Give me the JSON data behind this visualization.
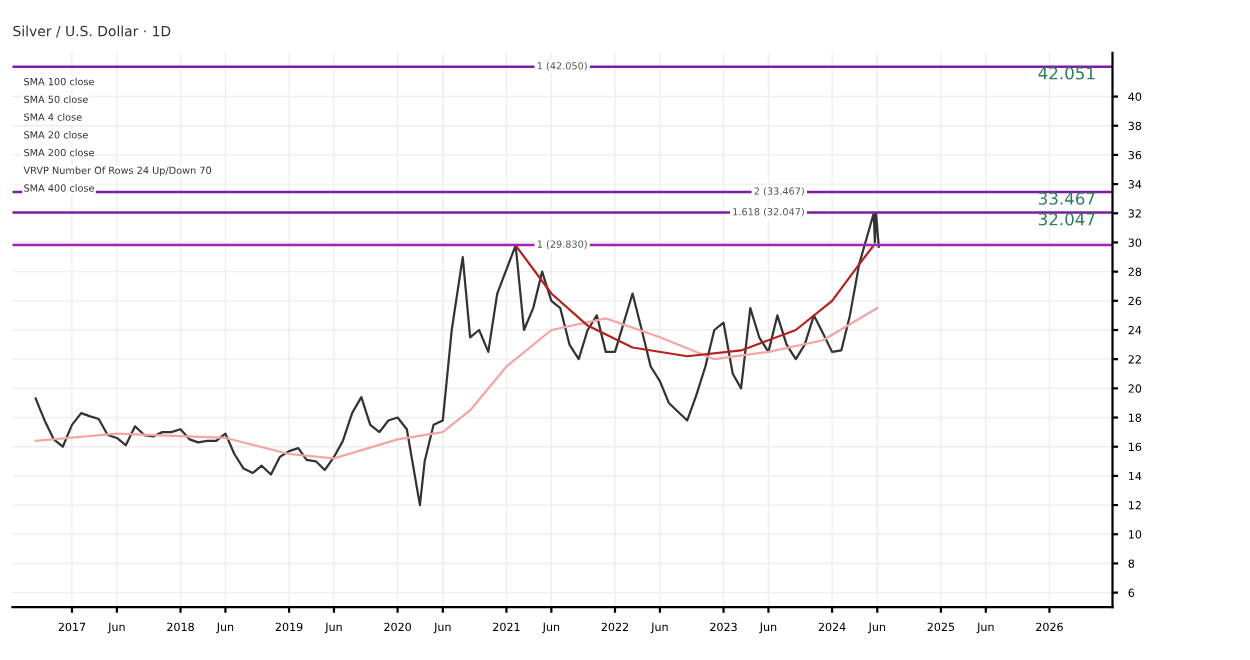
{
  "chart_data": {
    "type": "line",
    "title": "Silver / U.S. Dollar · 1D",
    "annotations": [
      "SMA 100 close",
      "SMA 50 close",
      "SMA 4 close",
      "SMA 20 close",
      "SMA 200 close",
      "VRVP Number Of Rows 24 Up/Down 70",
      "SMA 400 close",
      {
        "text": "1 (42.050)",
        "x": "2021-10-01",
        "y": 42.05
      },
      {
        "text": "1 (29.830)",
        "x": "2021-10-01",
        "y": 29.83
      },
      {
        "text": "2 (33.467)",
        "x": "2023-10-01",
        "y": 33.467
      },
      {
        "text": "1.618 (32.047)",
        "x": "2023-10-01",
        "y": 32.047
      }
    ],
    "xlim": [
      "2016-06-15",
      "2026-08-01"
    ],
    "xticks": [
      {
        "value": "2017-01-01",
        "label": "2017"
      },
      {
        "value": "2017-06-01",
        "label": "Jun"
      },
      {
        "value": "2018-01-01",
        "label": "2018"
      },
      {
        "value": "2018-06-01",
        "label": "Jun"
      },
      {
        "value": "2019-01-01",
        "label": "2019"
      },
      {
        "value": "2019-06-01",
        "label": "Jun"
      },
      {
        "value": "2020-01-01",
        "label": "2020"
      },
      {
        "value": "2020-06-01",
        "label": "Jun"
      },
      {
        "value": "2021-01-01",
        "label": "2021"
      },
      {
        "value": "2021-06-01",
        "label": "Jun"
      },
      {
        "value": "2022-01-01",
        "label": "2022"
      },
      {
        "value": "2022-06-01",
        "label": "Jun"
      },
      {
        "value": "2023-01-01",
        "label": "2023"
      },
      {
        "value": "2023-06-01",
        "label": "Jun"
      },
      {
        "value": "2024-01-01",
        "label": "2024"
      },
      {
        "value": "2024-06-01",
        "label": "Jun"
      },
      {
        "value": "2025-01-01",
        "label": "2025"
      },
      {
        "value": "2025-06-01",
        "label": "Jun"
      },
      {
        "value": "2026-01-01",
        "label": "2026"
      }
    ],
    "ylim": [
      5,
      43
    ],
    "yticks": [
      6,
      8,
      10,
      12,
      14,
      16,
      18,
      20,
      22,
      24,
      26,
      28,
      30,
      32,
      34,
      36,
      38,
      40
    ],
    "grid": true,
    "series": [
      {
        "color": "#333333",
        "x": [
          "2016-09-01",
          "2016-10-01",
          "2016-11-01",
          "2016-12-01",
          "2017-01-01",
          "2017-02-01",
          "2017-03-01",
          "2017-04-01",
          "2017-05-01",
          "2017-06-01",
          "2017-07-01",
          "2017-08-01",
          "2017-09-01",
          "2017-10-01",
          "2017-11-01",
          "2017-12-01",
          "2018-01-01",
          "2018-02-01",
          "2018-03-01",
          "2018-04-01",
          "2018-05-01",
          "2018-06-01",
          "2018-07-01",
          "2018-08-01",
          "2018-09-01",
          "2018-10-01",
          "2018-11-01",
          "2018-12-01",
          "2019-01-01",
          "2019-02-01",
          "2019-03-01",
          "2019-04-01",
          "2019-05-01",
          "2019-06-01",
          "2019-07-01",
          "2019-08-01",
          "2019-09-01",
          "2019-10-01",
          "2019-11-01",
          "2019-12-01",
          "2020-01-01",
          "2020-02-01",
          "2020-03-16",
          "2020-04-01",
          "2020-05-01",
          "2020-06-01",
          "2020-07-01",
          "2020-08-07",
          "2020-09-01",
          "2020-10-01",
          "2020-11-01",
          "2020-12-01",
          "2021-02-01",
          "2021-03-01",
          "2021-04-01",
          "2021-05-01",
          "2021-06-01",
          "2021-07-01",
          "2021-08-01",
          "2021-09-01",
          "2021-10-01",
          "2021-11-01",
          "2021-12-01",
          "2022-01-01",
          "2022-03-01",
          "2022-04-01",
          "2022-05-01",
          "2022-06-01",
          "2022-07-01",
          "2022-09-01",
          "2022-10-01",
          "2022-11-01",
          "2022-12-01",
          "2023-01-01",
          "2023-02-01",
          "2023-03-01",
          "2023-04-01",
          "2023-05-01",
          "2023-06-01",
          "2023-07-01",
          "2023-08-01",
          "2023-09-01",
          "2023-10-01",
          "2023-11-01",
          "2023-12-01",
          "2024-01-01",
          "2024-02-01",
          "2024-03-01",
          "2024-04-01",
          "2024-05-20",
          "2024-05-24",
          "2024-05-28",
          "2024-06-06"
        ],
        "values": [
          19.3,
          17.8,
          16.5,
          16.0,
          17.5,
          18.3,
          18.1,
          17.9,
          16.8,
          16.6,
          16.1,
          17.4,
          16.8,
          16.7,
          17.0,
          17.0,
          17.2,
          16.5,
          16.3,
          16.4,
          16.4,
          16.9,
          15.5,
          14.5,
          14.2,
          14.7,
          14.1,
          15.3,
          15.7,
          15.9,
          15.1,
          15.0,
          14.4,
          15.3,
          16.4,
          18.3,
          19.4,
          17.5,
          17.0,
          17.8,
          18.0,
          17.2,
          12.0,
          15.0,
          17.5,
          17.8,
          24.0,
          29.0,
          23.5,
          24.0,
          22.5,
          26.5,
          29.8,
          24.0,
          25.5,
          28.0,
          26.0,
          25.5,
          23.0,
          22.0,
          24.0,
          25.0,
          22.5,
          22.5,
          26.5,
          24.0,
          21.5,
          20.5,
          19.0,
          17.8,
          19.5,
          21.5,
          24.0,
          24.5,
          21.0,
          20.0,
          25.5,
          23.5,
          22.5,
          25.0,
          23.0,
          22.0,
          23.0,
          25.0,
          23.8,
          22.5,
          22.6,
          25.0,
          28.5,
          32.0,
          30.0,
          32.0,
          29.7
        ]
      },
      {
        "color": "#f4a6a6",
        "x": [
          "2016-09-01",
          "2017-06-01",
          "2018-06-01",
          "2019-01-01",
          "2019-06-01",
          "2020-01-01",
          "2020-06-01",
          "2020-09-01",
          "2021-01-01",
          "2021-06-01",
          "2021-12-01",
          "2022-06-01",
          "2022-12-01",
          "2023-06-01",
          "2023-12-01",
          "2024-06-01"
        ],
        "values": [
          16.4,
          16.9,
          16.6,
          15.5,
          15.2,
          16.5,
          17.0,
          18.5,
          21.5,
          24.0,
          24.8,
          23.5,
          22.0,
          22.5,
          23.3,
          25.5
        ]
      },
      {
        "color": "#b22222",
        "x": [
          "2021-02-01",
          "2021-06-01",
          "2021-10-01",
          "2022-03-01",
          "2022-09-01",
          "2023-03-01",
          "2023-09-01",
          "2024-01-01",
          "2024-04-01",
          "2024-05-20"
        ],
        "values": [
          29.8,
          26.5,
          24.3,
          22.8,
          22.2,
          22.6,
          24.0,
          26.0,
          28.5,
          29.8
        ]
      }
    ],
    "ref_lines": [
      {
        "axis": "y",
        "value": 42.051,
        "label": "42.051",
        "color": "#7b1fa2"
      },
      {
        "axis": "y",
        "value": 33.467,
        "label": "33.467",
        "color": "#7b1fa2"
      },
      {
        "axis": "y",
        "value": 32.047,
        "label": "32.047",
        "color": "#7b1fa2"
      },
      {
        "axis": "y",
        "value": 29.83,
        "color": "#9c27b0"
      }
    ]
  }
}
